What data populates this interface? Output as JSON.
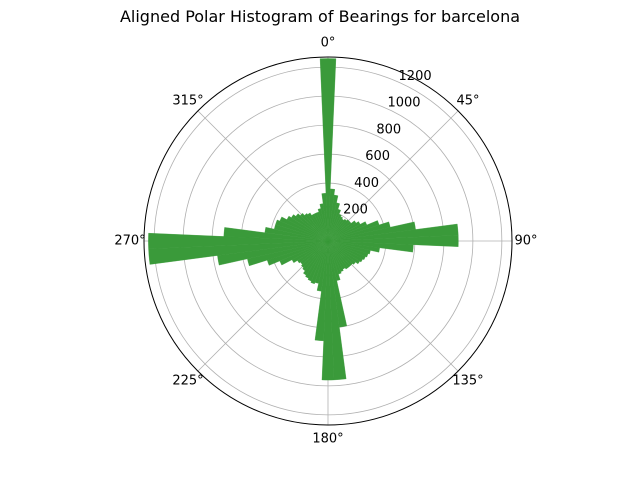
{
  "chart_data": {
    "type": "polar-bar",
    "title": "Aligned Polar Histogram of Bearings for barcelona",
    "theta_direction": "clockwise",
    "theta_zero": "north",
    "theta_tick_labels": [
      "0°",
      "45°",
      "90°",
      "135°",
      "180°",
      "225°",
      "270°",
      "315°"
    ],
    "theta_ticks_deg": [
      0,
      45,
      90,
      135,
      180,
      225,
      270,
      315
    ],
    "r_ticks": [
      200,
      400,
      600,
      800,
      1000,
      1200
    ],
    "r_tick_labels": [
      "200",
      "400",
      "600",
      "800",
      "1000",
      "1200"
    ],
    "rlim": [
      0,
      1270
    ],
    "bin_width_deg": 5,
    "bar_color": "#3a9a3a",
    "bin_centers_deg": [
      0,
      5,
      10,
      15,
      20,
      25,
      30,
      35,
      40,
      45,
      50,
      55,
      60,
      65,
      70,
      75,
      80,
      85,
      90,
      95,
      100,
      105,
      110,
      115,
      120,
      125,
      130,
      135,
      140,
      145,
      150,
      155,
      160,
      165,
      170,
      175,
      180,
      185,
      190,
      195,
      200,
      205,
      210,
      215,
      220,
      225,
      230,
      235,
      240,
      245,
      250,
      255,
      260,
      265,
      270,
      275,
      280,
      285,
      290,
      295,
      300,
      305,
      310,
      315,
      320,
      325,
      330,
      335,
      340,
      345,
      350,
      355
    ],
    "values": [
      1260,
      360,
      320,
      270,
      230,
      200,
      190,
      180,
      190,
      200,
      200,
      230,
      250,
      290,
      370,
      440,
      610,
      900,
      900,
      590,
      360,
      300,
      290,
      280,
      270,
      260,
      240,
      230,
      230,
      230,
      220,
      230,
      240,
      280,
      600,
      960,
      960,
      690,
      350,
      300,
      310,
      300,
      290,
      280,
      260,
      250,
      240,
      250,
      280,
      360,
      440,
      570,
      770,
      1240,
      1240,
      720,
      440,
      380,
      380,
      360,
      320,
      300,
      280,
      260,
      240,
      230,
      210,
      210,
      210,
      230,
      260,
      330
    ]
  }
}
